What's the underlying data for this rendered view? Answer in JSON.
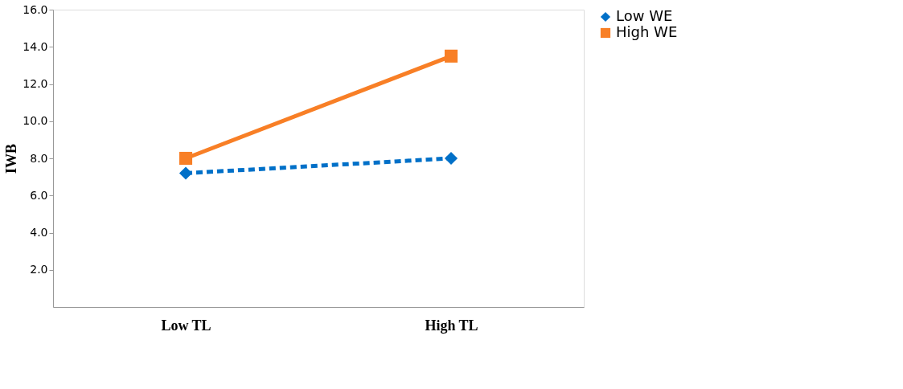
{
  "chart_data": {
    "type": "line",
    "ylabel": "IWB",
    "categories": [
      "Low TL",
      "High TL"
    ],
    "series": [
      {
        "name": "Low WE",
        "color": "#0070c8",
        "values": [
          7.2,
          8.0
        ],
        "marker": "diamond",
        "line_style": "dashed"
      },
      {
        "name": "High WE",
        "color": "#f87f26",
        "values": [
          8.0,
          13.5
        ],
        "marker": "square",
        "line_style": "solid"
      }
    ],
    "ylim": [
      0,
      16
    ],
    "yticks": [
      {
        "value": 2,
        "label": "2.0"
      },
      {
        "value": 4,
        "label": "4.0"
      },
      {
        "value": 6,
        "label": "6.0"
      },
      {
        "value": 8,
        "label": "8.0"
      },
      {
        "value": 10,
        "label": "10.0"
      },
      {
        "value": 12,
        "label": "12.0"
      },
      {
        "value": 14,
        "label": "14.0"
      },
      {
        "value": 16,
        "label": "16.0"
      }
    ],
    "grid": false,
    "legend": "right"
  }
}
